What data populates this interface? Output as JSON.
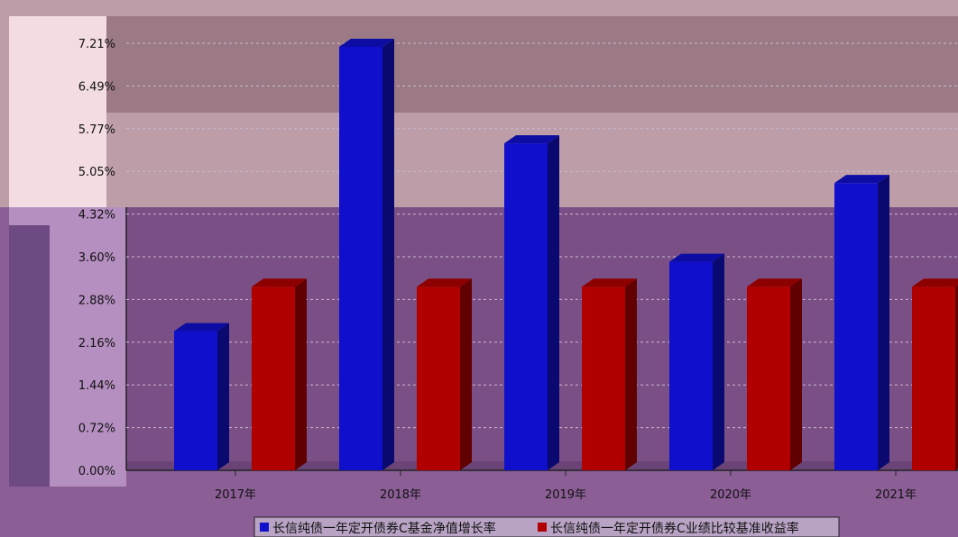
{
  "chart_data": {
    "type": "bar",
    "categories": [
      "2017年",
      "2018年",
      "2019年",
      "2020年",
      "2021年"
    ],
    "series": [
      {
        "name": "长信纯债一年定开债券C基金净值增长率",
        "color": "#1010cc",
        "values": [
          2.35,
          7.15,
          5.52,
          3.52,
          4.85
        ]
      },
      {
        "name": "长信纯债一年定开债券C业绩比较基准收益率",
        "color": "#b00000",
        "values": [
          3.1,
          3.1,
          3.1,
          3.1,
          3.1
        ]
      }
    ],
    "y_ticks": [
      "0.00%",
      "0.72%",
      "1.44%",
      "2.16%",
      "2.88%",
      "3.60%",
      "4.32%",
      "5.05%",
      "5.77%",
      "6.49%",
      "7.21%"
    ],
    "ylim": [
      0,
      7.21
    ],
    "grid": true,
    "legend_position": "bottom"
  }
}
